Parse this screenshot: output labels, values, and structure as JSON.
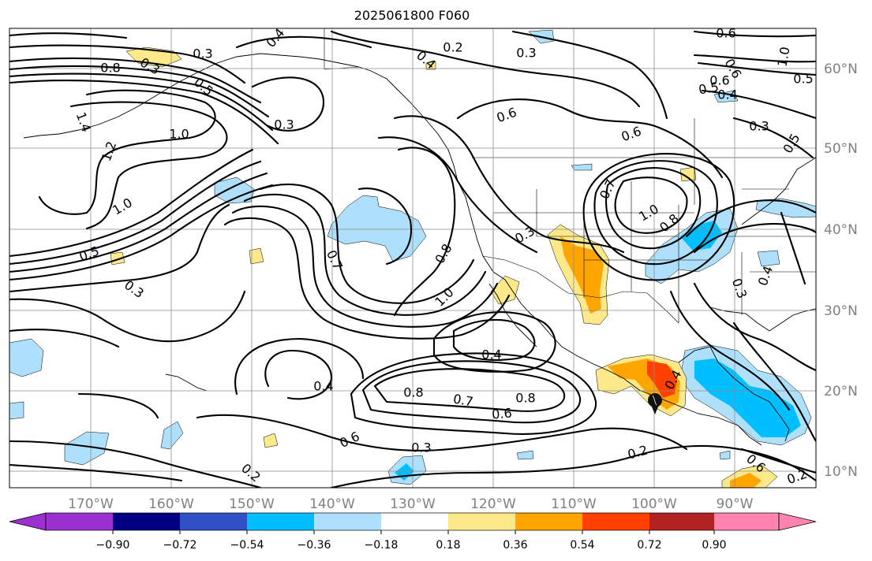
{
  "title": "2025061800 F060",
  "map": {
    "lon_range": [
      -180,
      -80
    ],
    "lat_range": [
      7,
      65
    ],
    "lon_ticks": [
      "170°W",
      "160°W",
      "150°W",
      "140°W",
      "130°W",
      "120°W",
      "110°W",
      "100°W",
      "90°W"
    ],
    "lat_ticks": [
      "10°N",
      "20°N",
      "30°N",
      "40°N",
      "50°N",
      "60°N"
    ],
    "grid": true,
    "contour_labels": [
      "0.3",
      "0.8",
      "0.4",
      "0.2",
      "0.3",
      "0.4",
      "0.6",
      "0.6",
      "0.5",
      "1.4",
      "1.2",
      "1.0",
      "0.3",
      "1.0",
      "0.5",
      "0.3",
      "0.7",
      "0.8",
      "1.0",
      "0.3",
      "0.6",
      "0.6",
      "0.7",
      "1.0",
      "0.8",
      "0.4",
      "0.5",
      "0.3",
      "0.4",
      "0.8",
      "0.7",
      "0.6",
      "0.8",
      "0.6",
      "0.4",
      "0.2",
      "0.2",
      "0.3",
      "0.4",
      "0.2",
      "0.6",
      "0.3",
      "1.0",
      "0.5",
      "0.6",
      "0.4",
      "0.3",
      "0.5"
    ]
  },
  "colorbar": {
    "colors": [
      "#9b30d0",
      "#000080",
      "#3050c8",
      "#00bfff",
      "#aee0fc",
      "#ffffff",
      "#fde98a",
      "#ffa500",
      "#ff4000",
      "#b22222",
      "#ff85b0"
    ],
    "tick_labels": [
      "−0.90",
      "−0.72",
      "−0.54",
      "−0.36",
      "−0.18",
      "0.18",
      "0.36",
      "0.54",
      "0.72",
      "0.90"
    ],
    "extend": "both"
  },
  "colors": {
    "light_blue": "#aee0fc",
    "blue": "#00bfff",
    "yellow": "#fde98a",
    "orange": "#ffa500",
    "red": "#ff4000"
  },
  "icons": {
    "marker": "storm-marker-icon"
  }
}
